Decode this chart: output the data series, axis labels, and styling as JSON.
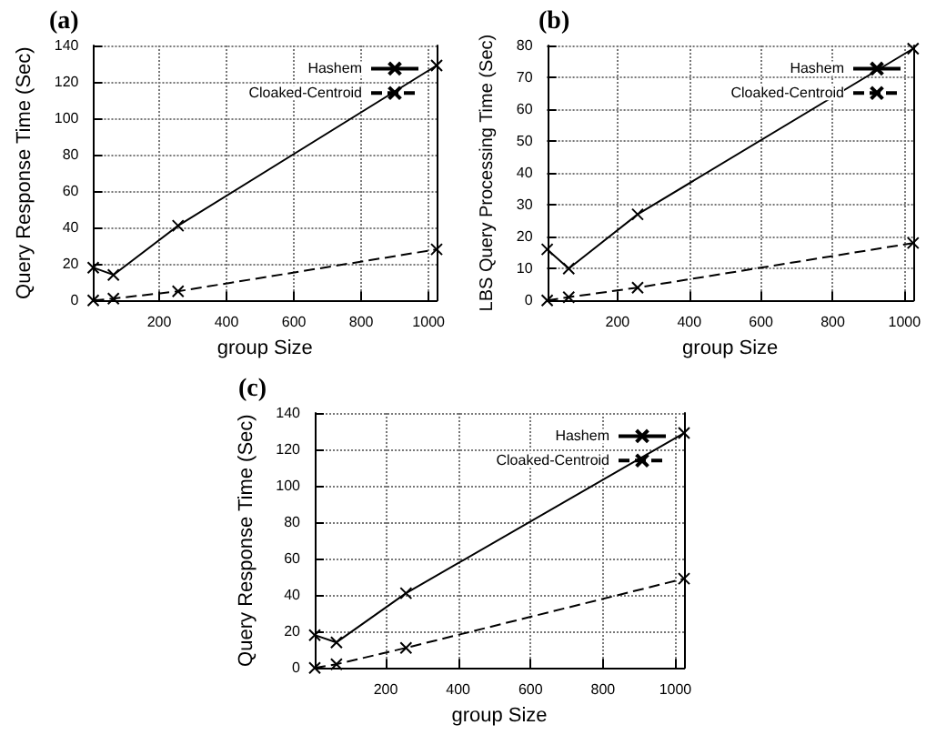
{
  "chart_data": [
    {
      "type": "line",
      "title": "(a)",
      "xlabel": "group Size",
      "ylabel": "Query Response Time (Sec)",
      "x": [
        4,
        64,
        256,
        1024
      ],
      "xlim": [
        4,
        1024
      ],
      "xticks": [
        200,
        400,
        600,
        800,
        1000
      ],
      "ylim": [
        0,
        140
      ],
      "yticks": [
        0,
        20,
        40,
        60,
        80,
        100,
        120,
        140
      ],
      "grid": true,
      "legend": "top right",
      "marker": "cross",
      "series": [
        {
          "name": "Hashem",
          "color": "#000000",
          "line_style": "solid",
          "values": [
            18,
            14,
            41,
            129
          ]
        },
        {
          "name": "Cloaked-Centroid",
          "color": "#000000",
          "line_style": "dashed",
          "values": [
            0,
            1,
            5,
            28
          ]
        }
      ]
    },
    {
      "type": "line",
      "title": "(b)",
      "xlabel": "group Size",
      "ylabel": "LBS Query Processing Time (Sec)",
      "x": [
        4,
        64,
        256,
        1024
      ],
      "xlim": [
        4,
        1024
      ],
      "xticks": [
        200,
        400,
        600,
        800,
        1000
      ],
      "ylim": [
        0,
        80
      ],
      "yticks": [
        0,
        10,
        20,
        30,
        40,
        50,
        60,
        70,
        80
      ],
      "grid": true,
      "legend": "top right",
      "marker": "cross",
      "series": [
        {
          "name": "Hashem",
          "color": "#000000",
          "line_style": "solid",
          "values": [
            16,
            10,
            27,
            79
          ]
        },
        {
          "name": "Cloaked-Centroid",
          "color": "#000000",
          "line_style": "dashed",
          "values": [
            0,
            1,
            4,
            18
          ]
        }
      ]
    },
    {
      "type": "line",
      "title": "(c)",
      "xlabel": "group Size",
      "ylabel": "Query Response Time (Sec)",
      "x": [
        4,
        64,
        256,
        1024
      ],
      "xlim": [
        4,
        1024
      ],
      "xticks": [
        200,
        400,
        600,
        800,
        1000
      ],
      "ylim": [
        0,
        140
      ],
      "yticks": [
        0,
        20,
        40,
        60,
        80,
        100,
        120,
        140
      ],
      "grid": true,
      "legend": "top right",
      "marker": "cross",
      "series": [
        {
          "name": "Hashem",
          "color": "#000000",
          "line_style": "solid",
          "values": [
            18,
            14,
            41,
            129
          ]
        },
        {
          "name": "Cloaked-Centroid",
          "color": "#000000",
          "line_style": "dashed",
          "values": [
            0,
            2,
            11,
            49
          ]
        }
      ]
    }
  ]
}
